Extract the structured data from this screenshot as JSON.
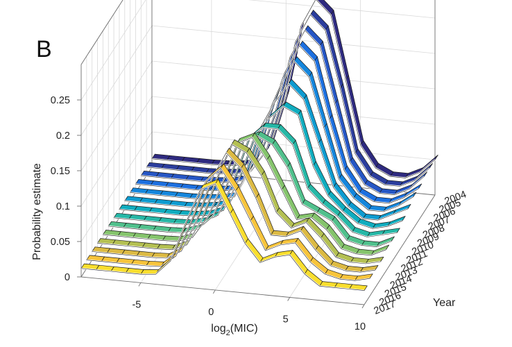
{
  "panel_label": "B",
  "colors": {
    "series": [
      "#2e2a7f",
      "#2b3d9c",
      "#2656c4",
      "#1c6fdf",
      "#1586dc",
      "#0e9bd0",
      "#10acbe",
      "#26b7a6",
      "#50c08c",
      "#85c46c",
      "#b4c052",
      "#dcba43",
      "#f7c43b",
      "#f9de2e"
    ]
  },
  "chart_data": {
    "type": "area",
    "title": "",
    "xlabel": "log2(MIC)",
    "xlabel_parts": {
      "base": "log",
      "sub": "2",
      "rest": "(MIC)"
    },
    "ylabel": "Year",
    "zlabel": "Probability estimate",
    "xlim": [
      -9,
      10
    ],
    "zlim": [
      0,
      0.25
    ],
    "x_ticks": [
      "-5",
      "0",
      "5",
      "10"
    ],
    "z_ticks": [
      "0",
      "0.05",
      "0.1",
      "0.15",
      "0.2",
      "0.25"
    ],
    "x": [
      -9,
      -8,
      -7,
      -6,
      -5,
      -4,
      -3,
      -2,
      -1,
      0,
      1,
      2,
      3,
      4,
      5,
      6,
      7,
      8,
      9,
      10
    ],
    "series": [
      {
        "name": "2004",
        "values": [
          0.012,
          0.012,
          0.012,
          0.012,
          0.012,
          0.013,
          0.015,
          0.02,
          0.05,
          0.12,
          0.22,
          0.26,
          0.24,
          0.15,
          0.06,
          0.03,
          0.02,
          0.02,
          0.03,
          0.05
        ]
      },
      {
        "name": "2005",
        "values": [
          0.012,
          0.012,
          0.012,
          0.012,
          0.012,
          0.013,
          0.015,
          0.02,
          0.05,
          0.12,
          0.21,
          0.25,
          0.23,
          0.15,
          0.06,
          0.03,
          0.02,
          0.02,
          0.03,
          0.05
        ]
      },
      {
        "name": "2006",
        "values": [
          0.012,
          0.012,
          0.012,
          0.012,
          0.012,
          0.013,
          0.015,
          0.02,
          0.06,
          0.12,
          0.2,
          0.24,
          0.22,
          0.14,
          0.06,
          0.03,
          0.02,
          0.02,
          0.03,
          0.05
        ]
      },
      {
        "name": "2007",
        "values": [
          0.012,
          0.012,
          0.012,
          0.012,
          0.012,
          0.013,
          0.015,
          0.02,
          0.06,
          0.13,
          0.19,
          0.23,
          0.21,
          0.13,
          0.06,
          0.03,
          0.02,
          0.02,
          0.03,
          0.045
        ]
      },
      {
        "name": "2008",
        "values": [
          0.012,
          0.012,
          0.012,
          0.012,
          0.012,
          0.013,
          0.015,
          0.02,
          0.06,
          0.13,
          0.18,
          0.22,
          0.2,
          0.13,
          0.06,
          0.035,
          0.02,
          0.02,
          0.03,
          0.045
        ]
      },
      {
        "name": "2009",
        "values": [
          0.012,
          0.012,
          0.012,
          0.012,
          0.012,
          0.013,
          0.016,
          0.022,
          0.06,
          0.13,
          0.17,
          0.2,
          0.18,
          0.12,
          0.06,
          0.035,
          0.02,
          0.02,
          0.03,
          0.04
        ]
      },
      {
        "name": "2010",
        "values": [
          0.012,
          0.012,
          0.012,
          0.012,
          0.012,
          0.013,
          0.016,
          0.025,
          0.07,
          0.13,
          0.16,
          0.18,
          0.17,
          0.1,
          0.06,
          0.04,
          0.025,
          0.02,
          0.025,
          0.035
        ]
      },
      {
        "name": "2011",
        "values": [
          0.012,
          0.012,
          0.012,
          0.012,
          0.012,
          0.013,
          0.018,
          0.03,
          0.08,
          0.14,
          0.16,
          0.16,
          0.14,
          0.08,
          0.06,
          0.045,
          0.025,
          0.02,
          0.025,
          0.03
        ]
      },
      {
        "name": "2012",
        "values": [
          0.012,
          0.012,
          0.012,
          0.012,
          0.012,
          0.013,
          0.02,
          0.04,
          0.09,
          0.15,
          0.16,
          0.15,
          0.12,
          0.07,
          0.06,
          0.05,
          0.025,
          0.02,
          0.02,
          0.03
        ]
      },
      {
        "name": "2013",
        "values": [
          0.012,
          0.012,
          0.012,
          0.012,
          0.012,
          0.013,
          0.02,
          0.05,
          0.1,
          0.16,
          0.17,
          0.14,
          0.1,
          0.06,
          0.065,
          0.05,
          0.025,
          0.02,
          0.02,
          0.03
        ]
      },
      {
        "name": "2014",
        "values": [
          0.012,
          0.012,
          0.012,
          0.012,
          0.012,
          0.013,
          0.022,
          0.06,
          0.12,
          0.17,
          0.16,
          0.13,
          0.08,
          0.06,
          0.07,
          0.05,
          0.025,
          0.02,
          0.02,
          0.025
        ]
      },
      {
        "name": "2015",
        "values": [
          0.012,
          0.012,
          0.012,
          0.012,
          0.012,
          0.013,
          0.025,
          0.07,
          0.13,
          0.17,
          0.15,
          0.11,
          0.06,
          0.06,
          0.07,
          0.045,
          0.025,
          0.02,
          0.02,
          0.025
        ]
      },
      {
        "name": "2016",
        "values": [
          0.012,
          0.012,
          0.012,
          0.012,
          0.012,
          0.013,
          0.03,
          0.08,
          0.14,
          0.16,
          0.13,
          0.09,
          0.05,
          0.06,
          0.065,
          0.04,
          0.025,
          0.02,
          0.02,
          0.025
        ]
      },
      {
        "name": "2017",
        "values": [
          0.012,
          0.012,
          0.012,
          0.012,
          0.012,
          0.014,
          0.035,
          0.09,
          0.14,
          0.15,
          0.11,
          0.07,
          0.045,
          0.055,
          0.06,
          0.035,
          0.02,
          0.02,
          0.02,
          0.02
        ]
      }
    ]
  }
}
